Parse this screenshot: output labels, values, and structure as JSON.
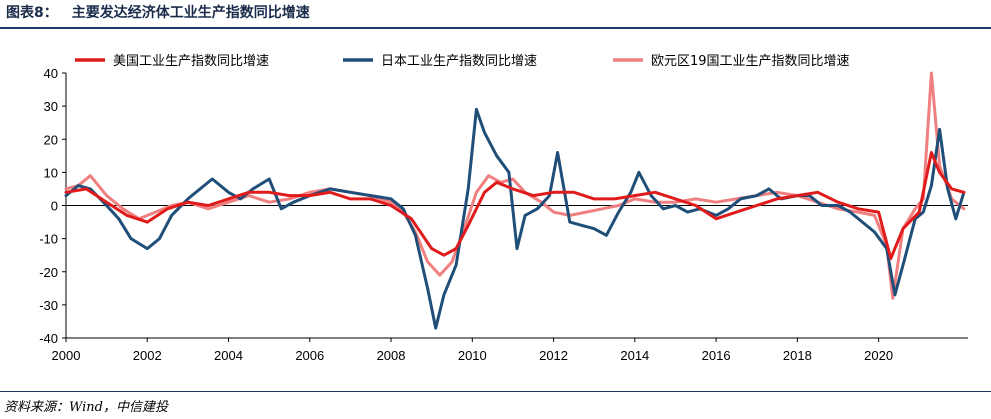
{
  "figure": {
    "number": "图表8：",
    "title": "主要发达经济体工业生产指数同比增速",
    "source": "资料来源：Wind，中信建投"
  },
  "chart_data": {
    "type": "line",
    "title": "主要发达经济体工业生产指数同比增速",
    "xlabel": "",
    "ylabel": "",
    "xlim": [
      2000,
      2022.2
    ],
    "ylim": [
      -40,
      40
    ],
    "y_ticks": [
      40,
      30,
      20,
      10,
      0,
      -10,
      -20,
      -30,
      -40
    ],
    "x_ticks": [
      "2000",
      "2002",
      "2004",
      "2006",
      "2008",
      "2010",
      "2012",
      "2014",
      "2016",
      "2018",
      "2020"
    ],
    "grid": false,
    "legend_position": "top",
    "series": [
      {
        "name": "美国工业生产指数同比增速",
        "color": "#e01b1b",
        "points": [
          [
            2000,
            4
          ],
          [
            2000.5,
            5
          ],
          [
            2001,
            1
          ],
          [
            2001.5,
            -3
          ],
          [
            2002,
            -5
          ],
          [
            2002.5,
            -1
          ],
          [
            2003,
            1
          ],
          [
            2003.5,
            0
          ],
          [
            2004,
            2
          ],
          [
            2004.5,
            4
          ],
          [
            2005,
            4
          ],
          [
            2005.5,
            3
          ],
          [
            2006,
            3
          ],
          [
            2006.5,
            4
          ],
          [
            2007,
            2
          ],
          [
            2007.5,
            2
          ],
          [
            2008,
            0
          ],
          [
            2008.5,
            -4
          ],
          [
            2009,
            -13
          ],
          [
            2009.3,
            -15
          ],
          [
            2009.6,
            -13
          ],
          [
            2009.9,
            -6
          ],
          [
            2010.3,
            4
          ],
          [
            2010.6,
            7
          ],
          [
            2011,
            5
          ],
          [
            2011.5,
            3
          ],
          [
            2012,
            4
          ],
          [
            2012.5,
            4
          ],
          [
            2013,
            2
          ],
          [
            2013.5,
            2
          ],
          [
            2014,
            3
          ],
          [
            2014.5,
            4
          ],
          [
            2015,
            2
          ],
          [
            2015.5,
            0
          ],
          [
            2016,
            -4
          ],
          [
            2016.5,
            -2
          ],
          [
            2017,
            0
          ],
          [
            2017.5,
            2
          ],
          [
            2018,
            3
          ],
          [
            2018.5,
            4
          ],
          [
            2019,
            1
          ],
          [
            2019.5,
            -1
          ],
          [
            2020,
            -2
          ],
          [
            2020.3,
            -16
          ],
          [
            2020.6,
            -7
          ],
          [
            2021,
            -2
          ],
          [
            2021.3,
            16
          ],
          [
            2021.5,
            10
          ],
          [
            2021.8,
            5
          ],
          [
            2022.1,
            4
          ]
        ]
      },
      {
        "name": "日本工业生产指数同比增速",
        "color": "#1f4e79",
        "points": [
          [
            2000,
            3
          ],
          [
            2000.3,
            6
          ],
          [
            2000.6,
            5
          ],
          [
            2001,
            0
          ],
          [
            2001.3,
            -4
          ],
          [
            2001.6,
            -10
          ],
          [
            2002,
            -13
          ],
          [
            2002.3,
            -10
          ],
          [
            2002.6,
            -3
          ],
          [
            2003,
            2
          ],
          [
            2003.3,
            5
          ],
          [
            2003.6,
            8
          ],
          [
            2004,
            4
          ],
          [
            2004.3,
            2
          ],
          [
            2004.6,
            5
          ],
          [
            2005,
            8
          ],
          [
            2005.3,
            -1
          ],
          [
            2005.6,
            1
          ],
          [
            2006,
            3
          ],
          [
            2006.5,
            5
          ],
          [
            2007,
            4
          ],
          [
            2007.5,
            3
          ],
          [
            2008,
            2
          ],
          [
            2008.3,
            -1
          ],
          [
            2008.6,
            -9
          ],
          [
            2008.9,
            -25
          ],
          [
            2009.1,
            -37
          ],
          [
            2009.3,
            -27
          ],
          [
            2009.6,
            -18
          ],
          [
            2009.9,
            5
          ],
          [
            2010.1,
            29
          ],
          [
            2010.3,
            22
          ],
          [
            2010.6,
            15
          ],
          [
            2010.9,
            10
          ],
          [
            2011.1,
            -13
          ],
          [
            2011.3,
            -3
          ],
          [
            2011.6,
            -1
          ],
          [
            2011.9,
            3
          ],
          [
            2012.1,
            16
          ],
          [
            2012.4,
            -5
          ],
          [
            2012.7,
            -6
          ],
          [
            2013,
            -7
          ],
          [
            2013.3,
            -9
          ],
          [
            2013.6,
            -2
          ],
          [
            2013.9,
            4
          ],
          [
            2014.1,
            10
          ],
          [
            2014.4,
            3
          ],
          [
            2014.7,
            -1
          ],
          [
            2015,
            0
          ],
          [
            2015.3,
            -2
          ],
          [
            2015.6,
            -1
          ],
          [
            2016,
            -3
          ],
          [
            2016.3,
            -1
          ],
          [
            2016.6,
            2
          ],
          [
            2017,
            3
          ],
          [
            2017.3,
            5
          ],
          [
            2017.6,
            2
          ],
          [
            2018,
            3
          ],
          [
            2018.3,
            3
          ],
          [
            2018.6,
            0
          ],
          [
            2019,
            0
          ],
          [
            2019.3,
            -2
          ],
          [
            2019.6,
            -5
          ],
          [
            2019.9,
            -8
          ],
          [
            2020.2,
            -13
          ],
          [
            2020.4,
            -27
          ],
          [
            2020.6,
            -18
          ],
          [
            2020.9,
            -4
          ],
          [
            2021.1,
            -2
          ],
          [
            2021.3,
            6
          ],
          [
            2021.5,
            23
          ],
          [
            2021.7,
            5
          ],
          [
            2021.9,
            -4
          ],
          [
            2022.1,
            4
          ]
        ]
      },
      {
        "name": "欧元区19国工业生产指数同比增速",
        "color": "#f08080",
        "points": [
          [
            2000,
            5
          ],
          [
            2000.3,
            6
          ],
          [
            2000.6,
            9
          ],
          [
            2001,
            3
          ],
          [
            2001.4,
            -1
          ],
          [
            2001.8,
            -4
          ],
          [
            2002.2,
            -2
          ],
          [
            2002.6,
            0
          ],
          [
            2003,
            1
          ],
          [
            2003.5,
            -1
          ],
          [
            2004,
            1
          ],
          [
            2004.5,
            3
          ],
          [
            2005,
            1
          ],
          [
            2005.5,
            2
          ],
          [
            2006,
            4
          ],
          [
            2006.5,
            5
          ],
          [
            2007,
            4
          ],
          [
            2007.5,
            3
          ],
          [
            2008,
            1
          ],
          [
            2008.3,
            -2
          ],
          [
            2008.6,
            -8
          ],
          [
            2008.9,
            -17
          ],
          [
            2009.2,
            -21
          ],
          [
            2009.5,
            -17
          ],
          [
            2009.8,
            -7
          ],
          [
            2010.1,
            4
          ],
          [
            2010.4,
            9
          ],
          [
            2010.7,
            7
          ],
          [
            2011,
            8
          ],
          [
            2011.3,
            4
          ],
          [
            2011.7,
            1
          ],
          [
            2012,
            -2
          ],
          [
            2012.4,
            -3
          ],
          [
            2012.8,
            -2
          ],
          [
            2013.2,
            -1
          ],
          [
            2013.6,
            0
          ],
          [
            2014,
            2
          ],
          [
            2014.5,
            1
          ],
          [
            2015,
            1
          ],
          [
            2015.5,
            2
          ],
          [
            2016,
            1
          ],
          [
            2016.5,
            2
          ],
          [
            2017,
            3
          ],
          [
            2017.5,
            4
          ],
          [
            2018,
            3
          ],
          [
            2018.5,
            1
          ],
          [
            2019,
            -1
          ],
          [
            2019.5,
            -2
          ],
          [
            2019.9,
            -3
          ],
          [
            2020.2,
            -12
          ],
          [
            2020.35,
            -28
          ],
          [
            2020.6,
            -7
          ],
          [
            2020.9,
            -1
          ],
          [
            2021.1,
            2
          ],
          [
            2021.3,
            40
          ],
          [
            2021.5,
            12
          ],
          [
            2021.8,
            2
          ],
          [
            2022.1,
            -1
          ]
        ]
      }
    ]
  }
}
